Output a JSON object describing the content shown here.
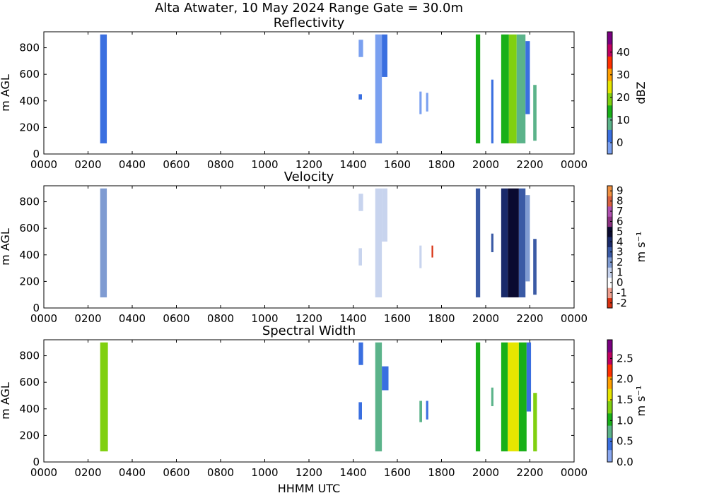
{
  "figure": {
    "title": "Alta Atwater, 10 May 2024 Range Gate = 30.0m",
    "xlabel": "HHMM UTC"
  },
  "chart_data": [
    {
      "type": "heatmap",
      "title": "Reflectivity",
      "xlabel": "",
      "ylabel": "m AGL",
      "xlim": [
        0,
        2400
      ],
      "ylim": [
        0,
        920
      ],
      "x_ticks": [
        "0000",
        "0200",
        "0400",
        "0600",
        "0800",
        "1000",
        "1200",
        "1400",
        "1600",
        "1800",
        "2000",
        "2200",
        "0000"
      ],
      "y_ticks": [
        "0",
        "200",
        "400",
        "600",
        "800"
      ],
      "colorbar": {
        "label": "dBZ",
        "range": [
          -5,
          49
        ],
        "ticks": [
          "0",
          "10",
          "20",
          "30",
          "40"
        ],
        "colors": [
          "#7aa0f0",
          "#3a6fe0",
          "#5bb38a",
          "#18b018",
          "#80d010",
          "#e6e600",
          "#ffa000",
          "#ff3000",
          "#c00060",
          "#7a0080"
        ]
      },
      "echoes": [
        {
          "x0": 255,
          "x1": 285,
          "y0": 80,
          "y1": 900,
          "value": 4
        },
        {
          "x0": 1425,
          "x1": 1445,
          "y0": 730,
          "y1": 860,
          "value": 0
        },
        {
          "x0": 1425,
          "x1": 1440,
          "y0": 410,
          "y1": 450,
          "value": 1
        },
        {
          "x0": 1500,
          "x1": 1530,
          "y0": 80,
          "y1": 900,
          "value": 0
        },
        {
          "x0": 1530,
          "x1": 1555,
          "y0": 580,
          "y1": 900,
          "value": 2
        },
        {
          "x0": 1700,
          "x1": 1710,
          "y0": 300,
          "y1": 470,
          "value": 0
        },
        {
          "x0": 1730,
          "x1": 1740,
          "y0": 320,
          "y1": 460,
          "value": 0
        },
        {
          "x0": 1955,
          "x1": 1975,
          "y0": 80,
          "y1": 900,
          "value": 12
        },
        {
          "x0": 2025,
          "x1": 2035,
          "y0": 80,
          "y1": 560,
          "value": 5
        },
        {
          "x0": 2070,
          "x1": 2105,
          "y0": 80,
          "y1": 900,
          "value": 14
        },
        {
          "x0": 2105,
          "x1": 2140,
          "y0": 80,
          "y1": 900,
          "value": 19
        },
        {
          "x0": 2140,
          "x1": 2180,
          "y0": 80,
          "y1": 900,
          "value": 9
        },
        {
          "x0": 2180,
          "x1": 2200,
          "y0": 300,
          "y1": 850,
          "value": 2
        },
        {
          "x0": 2215,
          "x1": 2230,
          "y0": 100,
          "y1": 520,
          "value": 6
        }
      ]
    },
    {
      "type": "heatmap",
      "title": "Velocity",
      "xlabel": "",
      "ylabel": "m AGL",
      "xlim": [
        0,
        2400
      ],
      "ylim": [
        0,
        920
      ],
      "x_ticks": [
        "0000",
        "0200",
        "0400",
        "0600",
        "0800",
        "1000",
        "1200",
        "1400",
        "1600",
        "1800",
        "2000",
        "2200",
        "0000"
      ],
      "y_ticks": [
        "0",
        "200",
        "400",
        "600",
        "800"
      ],
      "colorbar": {
        "label": "m s⁻¹",
        "range": [
          -2.5,
          9.5
        ],
        "ticks": [
          "-2",
          "-1",
          "0",
          "1",
          "2",
          "3",
          "4",
          "5",
          "6",
          "7",
          "8",
          "9"
        ],
        "colors": [
          "#d83010",
          "#f0a090",
          "#ffffff",
          "#c8d4ee",
          "#7f9bd2",
          "#3a5aa5",
          "#1a2a6a",
          "#0a0a30",
          "#8a3080",
          "#b050b0",
          "#d86040",
          "#f09040"
        ]
      },
      "echoes": [
        {
          "x0": 255,
          "x1": 285,
          "y0": 80,
          "y1": 900,
          "value": 2
        },
        {
          "x0": 1425,
          "x1": 1445,
          "y0": 730,
          "y1": 860,
          "value": 1
        },
        {
          "x0": 1425,
          "x1": 1440,
          "y0": 320,
          "y1": 450,
          "value": 1
        },
        {
          "x0": 1500,
          "x1": 1530,
          "y0": 80,
          "y1": 900,
          "value": 1
        },
        {
          "x0": 1530,
          "x1": 1555,
          "y0": 500,
          "y1": 900,
          "value": 0.5
        },
        {
          "x0": 1700,
          "x1": 1710,
          "y0": 300,
          "y1": 470,
          "value": 1
        },
        {
          "x0": 1755,
          "x1": 1762,
          "y0": 380,
          "y1": 470,
          "value": -2
        },
        {
          "x0": 1955,
          "x1": 1975,
          "y0": 80,
          "y1": 900,
          "value": 3
        },
        {
          "x0": 2025,
          "x1": 2035,
          "y0": 420,
          "y1": 560,
          "value": 3
        },
        {
          "x0": 2070,
          "x1": 2100,
          "y0": 80,
          "y1": 900,
          "value": 3.5
        },
        {
          "x0": 2100,
          "x1": 2150,
          "y0": 80,
          "y1": 900,
          "value": 4.5
        },
        {
          "x0": 2150,
          "x1": 2180,
          "y0": 80,
          "y1": 900,
          "value": 3
        },
        {
          "x0": 2180,
          "x1": 2200,
          "y0": 200,
          "y1": 850,
          "value": 2
        },
        {
          "x0": 2215,
          "x1": 2230,
          "y0": 100,
          "y1": 520,
          "value": 2.5
        }
      ]
    },
    {
      "type": "heatmap",
      "title": "Spectral Width",
      "xlabel": "HHMM UTC",
      "ylabel": "m AGL",
      "xlim": [
        0,
        2400
      ],
      "ylim": [
        0,
        920
      ],
      "x_ticks": [
        "0000",
        "0200",
        "0400",
        "0600",
        "0800",
        "1000",
        "1200",
        "1400",
        "1600",
        "1800",
        "2000",
        "2200",
        "0000"
      ],
      "y_ticks": [
        "0",
        "200",
        "400",
        "600",
        "800"
      ],
      "colorbar": {
        "label": "m s⁻¹",
        "range": [
          0,
          2.95
        ],
        "ticks": [
          "0.0",
          "0.5",
          "1.0",
          "1.5",
          "2.0",
          "2.5"
        ],
        "colors": [
          "#8aa8f0",
          "#3a6fe0",
          "#5bb38a",
          "#18b018",
          "#80d010",
          "#e6e600",
          "#ffa000",
          "#ff3000",
          "#c00060",
          "#7a0080"
        ]
      },
      "echoes": [
        {
          "x0": 255,
          "x1": 290,
          "y0": 80,
          "y1": 900,
          "value": 1.3
        },
        {
          "x0": 1425,
          "x1": 1445,
          "y0": 730,
          "y1": 900,
          "value": 0.4
        },
        {
          "x0": 1425,
          "x1": 1440,
          "y0": 320,
          "y1": 450,
          "value": 0.5
        },
        {
          "x0": 1500,
          "x1": 1530,
          "y0": 80,
          "y1": 900,
          "value": 0.8
        },
        {
          "x0": 1530,
          "x1": 1560,
          "y0": 540,
          "y1": 720,
          "value": 0.4
        },
        {
          "x0": 1700,
          "x1": 1712,
          "y0": 300,
          "y1": 460,
          "value": 0.6
        },
        {
          "x0": 1730,
          "x1": 1740,
          "y0": 320,
          "y1": 460,
          "value": 0.4
        },
        {
          "x0": 1955,
          "x1": 1975,
          "y0": 80,
          "y1": 900,
          "value": 0.9
        },
        {
          "x0": 2025,
          "x1": 2035,
          "y0": 420,
          "y1": 560,
          "value": 0.7
        },
        {
          "x0": 2070,
          "x1": 2100,
          "y0": 80,
          "y1": 900,
          "value": 1.1
        },
        {
          "x0": 2100,
          "x1": 2150,
          "y0": 80,
          "y1": 900,
          "value": 1.6
        },
        {
          "x0": 2150,
          "x1": 2185,
          "y0": 80,
          "y1": 900,
          "value": 1.0
        },
        {
          "x0": 2185,
          "x1": 2205,
          "y0": 380,
          "y1": 900,
          "value": 0.5
        },
        {
          "x0": 2215,
          "x1": 2232,
          "y0": 80,
          "y1": 520,
          "value": 1.2
        }
      ]
    }
  ]
}
